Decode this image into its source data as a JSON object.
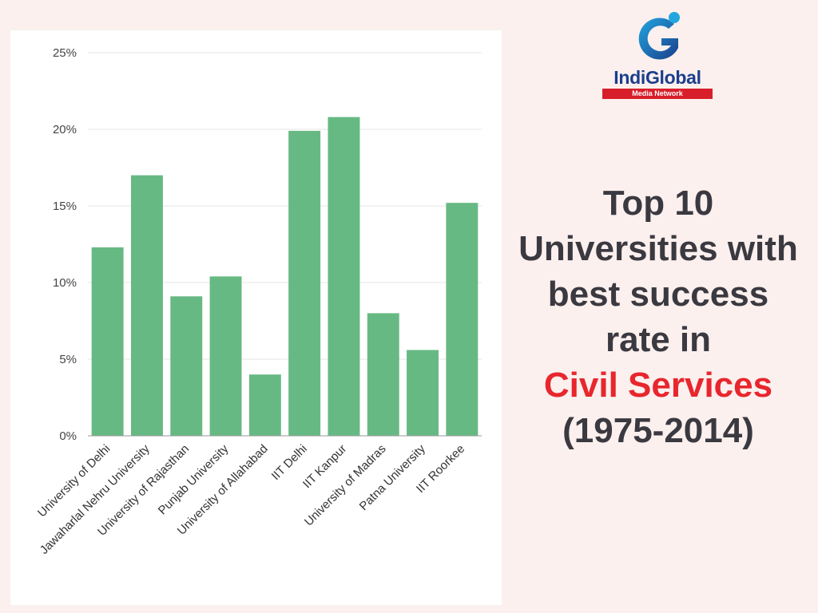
{
  "brand": {
    "logo_name": "IndiGlobal",
    "logo_tagline": "Media Network",
    "primary_color": "#1b3e8c",
    "accent_color": "#d81e2a"
  },
  "title": {
    "line1": "Top 10",
    "line2": "Universities with",
    "line3": "best success",
    "line4": "rate in",
    "highlight": "Civil Services",
    "line5": "(1975-2014)",
    "text_color": "#3b3940",
    "highlight_color": "#e8262d"
  },
  "chart_data": {
    "type": "bar",
    "categories": [
      "University of Delhi",
      "Jawaharlal Nehru University",
      "University of Rajasthan",
      "Punjab University",
      "University of Allahabad",
      "IIT Delhi",
      "IIT Kanpur",
      "University of Madras",
      "Patna University",
      "IIT Roorkee"
    ],
    "values": [
      12.3,
      17.0,
      9.1,
      10.4,
      4.0,
      19.9,
      20.8,
      8.0,
      5.6,
      15.2
    ],
    "ylim": [
      0,
      25
    ],
    "yticks": [
      0,
      5,
      10,
      15,
      20,
      25
    ],
    "ytick_labels": [
      "0%",
      "5%",
      "10%",
      "15%",
      "20%",
      "25%"
    ],
    "bar_color": "#67b983",
    "grid": true,
    "legend": "none"
  }
}
